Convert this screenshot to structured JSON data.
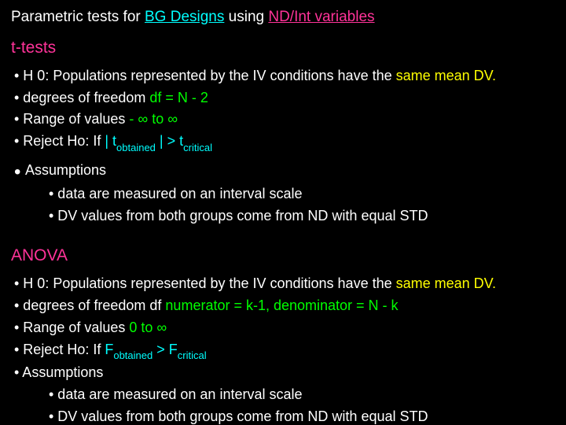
{
  "colors": {
    "background": "#000000",
    "text": "#ffffff",
    "cyan": "#00ffff",
    "magenta": "#ff3399",
    "yellow": "#ffff00",
    "lime": "#00ff00"
  },
  "title": {
    "p1": "Parametric tests for ",
    "p2": "BG Designs",
    "p3": " using ",
    "p4": "ND/Int variables"
  },
  "section1": {
    "heading": "t-tests",
    "b1_pre": "• H 0: Populations represented by the IV conditions have the ",
    "b1_hl": " same mean DV.",
    "b2_pre": "• degrees of freedom ",
    "b2_hl": "   df = N - 2",
    "b3_pre": "• Range of values ",
    "b3_hl": "  - ∞  to ∞",
    "b4_pre": "• Reject Ho: If ",
    "b4_t1": " | t",
    "b4_obt": "obtained",
    "b4_mid": " |   >  t",
    "b4_crit": "critical",
    "b5": "Assumptions",
    "s1": "• data are measured on an interval scale",
    "s2": "• DV values from both groups come from ND with equal STD"
  },
  "section2": {
    "heading": "ANOVA",
    "b1_pre": "• H 0: Populations represented by the IV conditions have the ",
    "b1_hl": " same mean DV.",
    "b2_pre": "• degrees of freedom df ",
    "b2_hl": "  numerator = k-1, denominator = N - k",
    "b3_pre": "• Range of values ",
    "b3_hl": "  0  to ∞",
    "b4_pre": "• Reject Ho: If ",
    "b4_f1": " F",
    "b4_obt": "obtained",
    "b4_mid": "    >  F",
    "b4_crit": "critical",
    "b5": "• Assumptions",
    "s1": "• data are measured on an interval scale",
    "s2": "• DV values from both groups come from ND with equal STD"
  }
}
